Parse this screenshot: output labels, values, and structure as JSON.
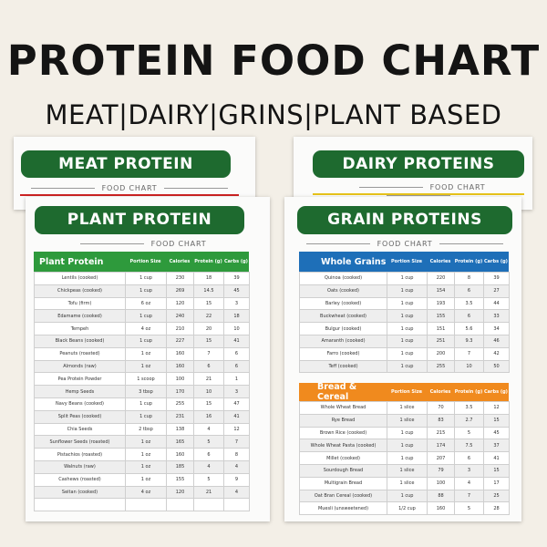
{
  "header": {
    "title": "PROTEIN FOOD CHART",
    "subtitle": "MEAT|DAIRY|GRINS|PLANT BASED"
  },
  "colors": {
    "dark_green": "#1e6a2f",
    "header_green": "#2e9a3c",
    "header_blue": "#1e6fb8",
    "header_orange": "#f08a1e",
    "meat_underline": "#cc2222",
    "dairy_underline": "#e6c21a"
  },
  "meat": {
    "title": "MEAT PROTEIN",
    "food_chart": "FOOD CHART"
  },
  "dairy": {
    "title": "DAIRY PROTEINS",
    "food_chart": "FOOD CHART"
  },
  "plant": {
    "title": "PLANT PROTEIN",
    "food_chart": "FOOD CHART",
    "columns": [
      "Plant Protein",
      "Portion Size",
      "Calories",
      "Protein (g)",
      "Carbs (g)"
    ],
    "rows": [
      [
        "Lentils (cooked)",
        "1 cup",
        "230",
        "18",
        "39"
      ],
      [
        "Chickpeas (cooked)",
        "1 cup",
        "269",
        "14.5",
        "45"
      ],
      [
        "Tofu (firm)",
        "6 oz",
        "120",
        "15",
        "3"
      ],
      [
        "Edamame (cooked)",
        "1 cup",
        "240",
        "22",
        "18"
      ],
      [
        "Tempeh",
        "4 oz",
        "210",
        "20",
        "10"
      ],
      [
        "Black Beans (cooked)",
        "1 cup",
        "227",
        "15",
        "41"
      ],
      [
        "Peanuts (roasted)",
        "1 oz",
        "160",
        "7",
        "6"
      ],
      [
        "Almonds (raw)",
        "1 oz",
        "160",
        "6",
        "6"
      ],
      [
        "Pea Protein Powder",
        "1 scoop",
        "100",
        "21",
        "1"
      ],
      [
        "Hemp Seeds",
        "3 tbsp",
        "170",
        "10",
        "3"
      ],
      [
        "Navy Beans (cooked)",
        "1 cup",
        "255",
        "15",
        "47"
      ],
      [
        "Split Peas (cooked)",
        "1 cup",
        "231",
        "16",
        "41"
      ],
      [
        "Chia Seeds",
        "2 tbsp",
        "138",
        "4",
        "12"
      ],
      [
        "Sunflower Seeds (roasted)",
        "1 oz",
        "165",
        "5",
        "7"
      ],
      [
        "Pistachios (roasted)",
        "1 oz",
        "160",
        "6",
        "8"
      ],
      [
        "Walnuts (raw)",
        "1 oz",
        "185",
        "4",
        "4"
      ],
      [
        "Cashews (roasted)",
        "1 oz",
        "155",
        "5",
        "9"
      ],
      [
        "Seitan (cooked)",
        "4 oz",
        "120",
        "21",
        "4"
      ],
      [
        "",
        "",
        "",
        "",
        ""
      ]
    ]
  },
  "grain": {
    "title": "GRAIN PROTEINS",
    "food_chart": "FOOD CHART",
    "whole_columns": [
      "Whole Grains",
      "Portion Size",
      "Calories",
      "Protein (g)",
      "Carbs (g)"
    ],
    "whole_rows": [
      [
        "Quinoa (cooked)",
        "1 cup",
        "220",
        "8",
        "39"
      ],
      [
        "Oats (cooked)",
        "1 cup",
        "154",
        "6",
        "27"
      ],
      [
        "Barley (cooked)",
        "1 cup",
        "193",
        "3.5",
        "44"
      ],
      [
        "Buckwheat (cooked)",
        "1 cup",
        "155",
        "6",
        "33"
      ],
      [
        "Bulgur (cooked)",
        "1 cup",
        "151",
        "5.6",
        "34"
      ],
      [
        "Amaranth (cooked)",
        "1 cup",
        "251",
        "9.3",
        "46"
      ],
      [
        "Farro (cooked)",
        "1 cup",
        "200",
        "7",
        "42"
      ],
      [
        "Teff (cooked)",
        "1 cup",
        "255",
        "10",
        "50"
      ]
    ],
    "bread_columns": [
      "Bread & Cereal",
      "Portion Size",
      "Calories",
      "Protein (g)",
      "Carbs (g)"
    ],
    "bread_rows": [
      [
        "Whole Wheat Bread",
        "1 slice",
        "70",
        "3.5",
        "12"
      ],
      [
        "Rye Bread",
        "1 slice",
        "83",
        "2.7",
        "15"
      ],
      [
        "Brown Rice (cooked)",
        "1 cup",
        "215",
        "5",
        "45"
      ],
      [
        "Whole Wheat Pasta (cooked)",
        "1 cup",
        "174",
        "7.5",
        "37"
      ],
      [
        "Millet (cooked)",
        "1 cup",
        "207",
        "6",
        "41"
      ],
      [
        "Sourdough Bread",
        "1 slice",
        "79",
        "3",
        "15"
      ],
      [
        "Multigrain Bread",
        "1 slice",
        "100",
        "4",
        "17"
      ],
      [
        "Oat Bran Cereal (cooked)",
        "1 cup",
        "88",
        "7",
        "25"
      ],
      [
        "Muesli (unsweetened)",
        "1/2 cup",
        "160",
        "5",
        "28"
      ]
    ]
  }
}
